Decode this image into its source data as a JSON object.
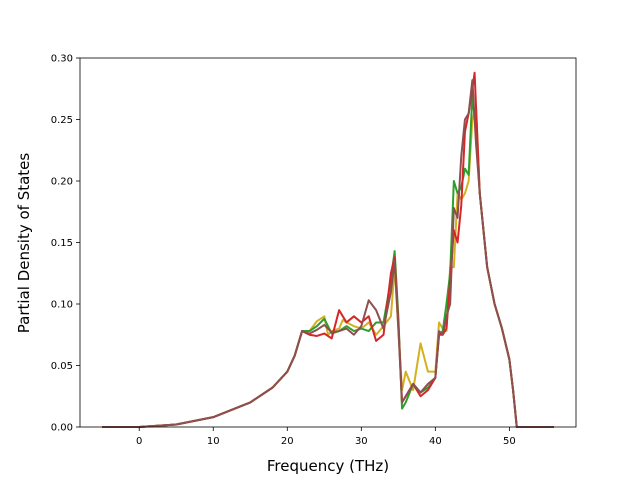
{
  "chart_data": {
    "type": "line",
    "xlabel": "Frequency (THz)",
    "ylabel": "Partial Density of States",
    "xlim": [
      -8,
      59
    ],
    "ylim": [
      0,
      0.3
    ],
    "xticks": [
      "0",
      "10",
      "20",
      "30",
      "40",
      "50"
    ],
    "yticks": [
      "0.00",
      "0.05",
      "0.10",
      "0.15",
      "0.20",
      "0.25",
      "0.30"
    ],
    "grid": false,
    "series": [
      {
        "color": "#d4b020",
        "points": [
          [
            -5,
            0
          ],
          [
            0,
            0
          ],
          [
            5,
            0.002
          ],
          [
            10,
            0.008
          ],
          [
            15,
            0.02
          ],
          [
            18,
            0.032
          ],
          [
            20,
            0.045
          ],
          [
            21,
            0.058
          ],
          [
            22,
            0.078
          ],
          [
            23,
            0.078
          ],
          [
            24,
            0.086
          ],
          [
            25,
            0.09
          ],
          [
            25.5,
            0.075
          ],
          [
            26,
            0.078
          ],
          [
            27,
            0.08
          ],
          [
            27.5,
            0.087
          ],
          [
            28,
            0.085
          ],
          [
            29,
            0.082
          ],
          [
            30,
            0.08
          ],
          [
            31,
            0.085
          ],
          [
            32,
            0.075
          ],
          [
            33,
            0.082
          ],
          [
            34,
            0.09
          ],
          [
            34.5,
            0.13
          ],
          [
            35,
            0.08
          ],
          [
            35.5,
            0.03
          ],
          [
            36,
            0.045
          ],
          [
            37,
            0.03
          ],
          [
            38,
            0.068
          ],
          [
            39,
            0.045
          ],
          [
            40,
            0.045
          ],
          [
            40.5,
            0.085
          ],
          [
            41,
            0.08
          ],
          [
            41.5,
            0.078
          ],
          [
            42,
            0.13
          ],
          [
            42.5,
            0.13
          ],
          [
            43,
            0.19
          ],
          [
            43.5,
            0.185
          ],
          [
            44,
            0.19
          ],
          [
            44.5,
            0.2
          ],
          [
            45,
            0.25
          ],
          [
            45.5,
            0.26
          ],
          [
            46,
            0.19
          ],
          [
            47,
            0.13
          ],
          [
            48,
            0.1
          ],
          [
            49,
            0.08
          ],
          [
            50,
            0.055
          ],
          [
            50.5,
            0.03
          ],
          [
            51,
            0
          ],
          [
            56,
            0
          ]
        ]
      },
      {
        "color": "#2ca02c",
        "points": [
          [
            -5,
            0
          ],
          [
            0,
            0
          ],
          [
            5,
            0.002
          ],
          [
            10,
            0.008
          ],
          [
            15,
            0.02
          ],
          [
            18,
            0.032
          ],
          [
            20,
            0.045
          ],
          [
            21,
            0.058
          ],
          [
            22,
            0.078
          ],
          [
            23,
            0.078
          ],
          [
            24,
            0.082
          ],
          [
            25,
            0.088
          ],
          [
            26,
            0.076
          ],
          [
            27,
            0.078
          ],
          [
            28,
            0.082
          ],
          [
            29,
            0.078
          ],
          [
            30,
            0.08
          ],
          [
            31,
            0.078
          ],
          [
            32,
            0.085
          ],
          [
            33,
            0.085
          ],
          [
            34,
            0.12
          ],
          [
            34.5,
            0.143
          ],
          [
            35,
            0.09
          ],
          [
            35.5,
            0.015
          ],
          [
            36,
            0.02
          ],
          [
            37,
            0.035
          ],
          [
            38,
            0.028
          ],
          [
            39,
            0.032
          ],
          [
            40,
            0.04
          ],
          [
            40.5,
            0.075
          ],
          [
            41,
            0.078
          ],
          [
            41.5,
            0.1
          ],
          [
            42,
            0.125
          ],
          [
            42.5,
            0.2
          ],
          [
            43,
            0.19
          ],
          [
            43.5,
            0.195
          ],
          [
            44,
            0.21
          ],
          [
            44.5,
            0.205
          ],
          [
            45,
            0.27
          ],
          [
            45.5,
            0.24
          ],
          [
            46,
            0.19
          ],
          [
            47,
            0.13
          ],
          [
            48,
            0.1
          ],
          [
            49,
            0.08
          ],
          [
            50,
            0.055
          ],
          [
            50.5,
            0.03
          ],
          [
            51,
            0
          ],
          [
            56,
            0
          ]
        ]
      },
      {
        "color": "#d62728",
        "points": [
          [
            -5,
            0
          ],
          [
            0,
            0
          ],
          [
            5,
            0.002
          ],
          [
            10,
            0.008
          ],
          [
            15,
            0.02
          ],
          [
            18,
            0.032
          ],
          [
            20,
            0.045
          ],
          [
            21,
            0.058
          ],
          [
            22,
            0.078
          ],
          [
            23,
            0.075
          ],
          [
            24,
            0.074
          ],
          [
            25,
            0.076
          ],
          [
            26,
            0.072
          ],
          [
            27,
            0.095
          ],
          [
            28,
            0.085
          ],
          [
            29,
            0.09
          ],
          [
            30,
            0.085
          ],
          [
            31,
            0.09
          ],
          [
            32,
            0.07
          ],
          [
            33,
            0.075
          ],
          [
            34,
            0.125
          ],
          [
            34.5,
            0.138
          ],
          [
            35,
            0.085
          ],
          [
            35.5,
            0.02
          ],
          [
            36,
            0.025
          ],
          [
            37,
            0.035
          ],
          [
            38,
            0.025
          ],
          [
            39,
            0.03
          ],
          [
            40,
            0.04
          ],
          [
            40.5,
            0.075
          ],
          [
            41,
            0.075
          ],
          [
            41.5,
            0.08
          ],
          [
            42,
            0.12
          ],
          [
            42.5,
            0.16
          ],
          [
            43,
            0.15
          ],
          [
            43.5,
            0.18
          ],
          [
            44,
            0.24
          ],
          [
            44.5,
            0.255
          ],
          [
            45,
            0.275
          ],
          [
            45.3,
            0.288
          ],
          [
            46,
            0.19
          ],
          [
            47,
            0.13
          ],
          [
            48,
            0.1
          ],
          [
            49,
            0.08
          ],
          [
            50,
            0.055
          ],
          [
            50.5,
            0.03
          ],
          [
            51,
            0
          ],
          [
            56,
            0
          ]
        ]
      },
      {
        "color": "#8c5050",
        "points": [
          [
            -5,
            0
          ],
          [
            0,
            0
          ],
          [
            5,
            0.002
          ],
          [
            10,
            0.008
          ],
          [
            15,
            0.02
          ],
          [
            18,
            0.032
          ],
          [
            20,
            0.045
          ],
          [
            21,
            0.058
          ],
          [
            22,
            0.078
          ],
          [
            23,
            0.076
          ],
          [
            24,
            0.079
          ],
          [
            25,
            0.083
          ],
          [
            26,
            0.077
          ],
          [
            27,
            0.078
          ],
          [
            28,
            0.08
          ],
          [
            29,
            0.075
          ],
          [
            30,
            0.082
          ],
          [
            31,
            0.103
          ],
          [
            32,
            0.095
          ],
          [
            33,
            0.08
          ],
          [
            34,
            0.11
          ],
          [
            34.5,
            0.135
          ],
          [
            35,
            0.08
          ],
          [
            35.5,
            0.02
          ],
          [
            36,
            0.025
          ],
          [
            37,
            0.035
          ],
          [
            38,
            0.028
          ],
          [
            39,
            0.035
          ],
          [
            40,
            0.04
          ],
          [
            40.5,
            0.078
          ],
          [
            41,
            0.075
          ],
          [
            41.5,
            0.09
          ],
          [
            42,
            0.1
          ],
          [
            42.5,
            0.178
          ],
          [
            43,
            0.17
          ],
          [
            43.5,
            0.22
          ],
          [
            44,
            0.25
          ],
          [
            44.5,
            0.255
          ],
          [
            45,
            0.282
          ],
          [
            45.5,
            0.23
          ],
          [
            46,
            0.19
          ],
          [
            47,
            0.13
          ],
          [
            48,
            0.1
          ],
          [
            49,
            0.08
          ],
          [
            50,
            0.055
          ],
          [
            50.5,
            0.03
          ],
          [
            51,
            0
          ],
          [
            56,
            0
          ]
        ]
      }
    ]
  }
}
